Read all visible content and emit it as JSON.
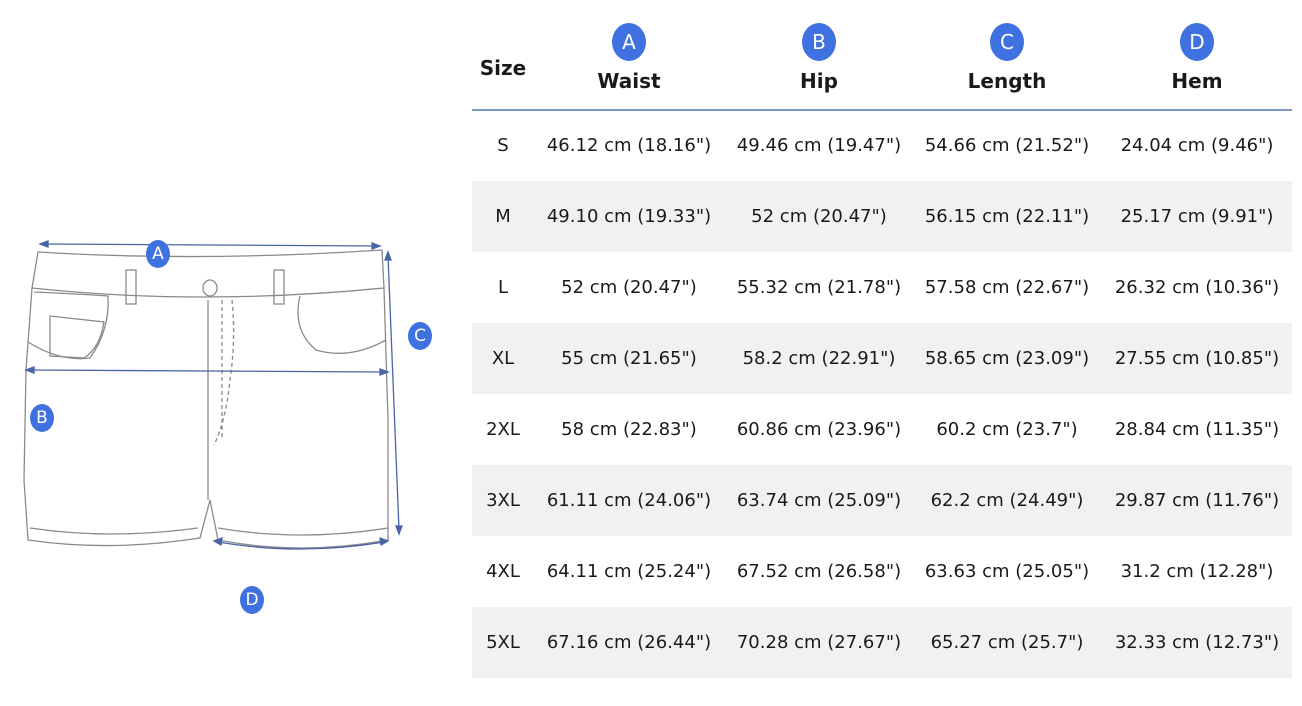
{
  "diagram": {
    "markers": [
      "A",
      "B",
      "C",
      "D"
    ]
  },
  "table": {
    "size_header": "Size",
    "columns": [
      {
        "marker": "A",
        "label": "Waist"
      },
      {
        "marker": "B",
        "label": "Hip"
      },
      {
        "marker": "C",
        "label": "Length"
      },
      {
        "marker": "D",
        "label": "Hem"
      }
    ],
    "rows": [
      {
        "size": "S",
        "waist": "46.12 cm (18.16\")",
        "hip": "49.46 cm (19.47\")",
        "length": "54.66 cm (21.52\")",
        "hem": "24.04 cm (9.46\")"
      },
      {
        "size": "M",
        "waist": "49.10 cm (19.33\")",
        "hip": "52 cm (20.47\")",
        "length": "56.15 cm (22.11\")",
        "hem": "25.17 cm (9.91\")"
      },
      {
        "size": "L",
        "waist": "52 cm (20.47\")",
        "hip": "55.32 cm (21.78\")",
        "length": "57.58 cm (22.67\")",
        "hem": "26.32 cm (10.36\")"
      },
      {
        "size": "XL",
        "waist": "55 cm (21.65\")",
        "hip": "58.2 cm (22.91\")",
        "length": "58.65 cm (23.09\")",
        "hem": "27.55 cm (10.85\")"
      },
      {
        "size": "2XL",
        "waist": "58 cm (22.83\")",
        "hip": "60.86 cm (23.96\")",
        "length": "60.2 cm (23.7\")",
        "hem": "28.84 cm (11.35\")"
      },
      {
        "size": "3XL",
        "waist": "61.11 cm (24.06\")",
        "hip": "63.74 cm (25.09\")",
        "length": "62.2 cm (24.49\")",
        "hem": "29.87 cm (11.76\")"
      },
      {
        "size": "4XL",
        "waist": "64.11 cm (25.24\")",
        "hip": "67.52 cm (26.58\")",
        "length": "63.63 cm (25.05\")",
        "hem": "31.2 cm (12.28\")"
      },
      {
        "size": "5XL",
        "waist": "67.16 cm (26.44\")",
        "hip": "70.28 cm (27.67\")",
        "length": "65.27 cm (25.7\")",
        "hem": "32.33 cm (12.73\")"
      }
    ]
  }
}
